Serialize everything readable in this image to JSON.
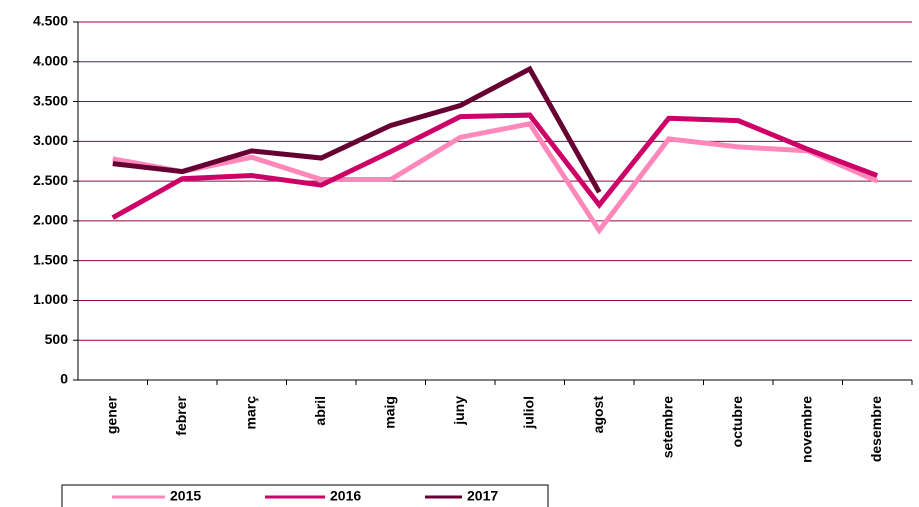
{
  "chart_data": {
    "type": "line",
    "categories": [
      "gener",
      "febrer",
      "març",
      "abril",
      "maig",
      "juny",
      "juliol",
      "agost",
      "setembre",
      "octubre",
      "novembre",
      "desembre"
    ],
    "series": [
      {
        "name": "2015",
        "color": "#ff88bb",
        "values": [
          2780,
          2620,
          2800,
          2520,
          2520,
          3050,
          3220,
          1880,
          3030,
          2930,
          2880,
          2500
        ]
      },
      {
        "name": "2016",
        "color": "#cc0066",
        "values": [
          2040,
          2530,
          2570,
          2450,
          2870,
          3310,
          3330,
          2200,
          3290,
          3260,
          2900,
          2570
        ]
      },
      {
        "name": "2017",
        "color": "#660033",
        "values": [
          2720,
          2620,
          2880,
          2790,
          3200,
          3450,
          3910,
          2360,
          null,
          null,
          null,
          null
        ]
      }
    ],
    "ylim": [
      0,
      4500
    ],
    "yticks": [
      0,
      500,
      {
        "value": 1000,
        "label": "1.000"
      },
      {
        "value": 1500,
        "label": "1.500"
      },
      {
        "value": 2000,
        "label": "2.000"
      },
      {
        "value": 2500,
        "label": "2.500"
      },
      {
        "value": 3000,
        "label": "3.000"
      },
      {
        "value": 3500,
        "label": "3.500"
      },
      {
        "value": 4000,
        "label": "4.000"
      },
      {
        "value": 4500,
        "label": "4.500"
      }
    ],
    "grid": true,
    "grid_color": "#990044",
    "legend": "bottom-left"
  }
}
